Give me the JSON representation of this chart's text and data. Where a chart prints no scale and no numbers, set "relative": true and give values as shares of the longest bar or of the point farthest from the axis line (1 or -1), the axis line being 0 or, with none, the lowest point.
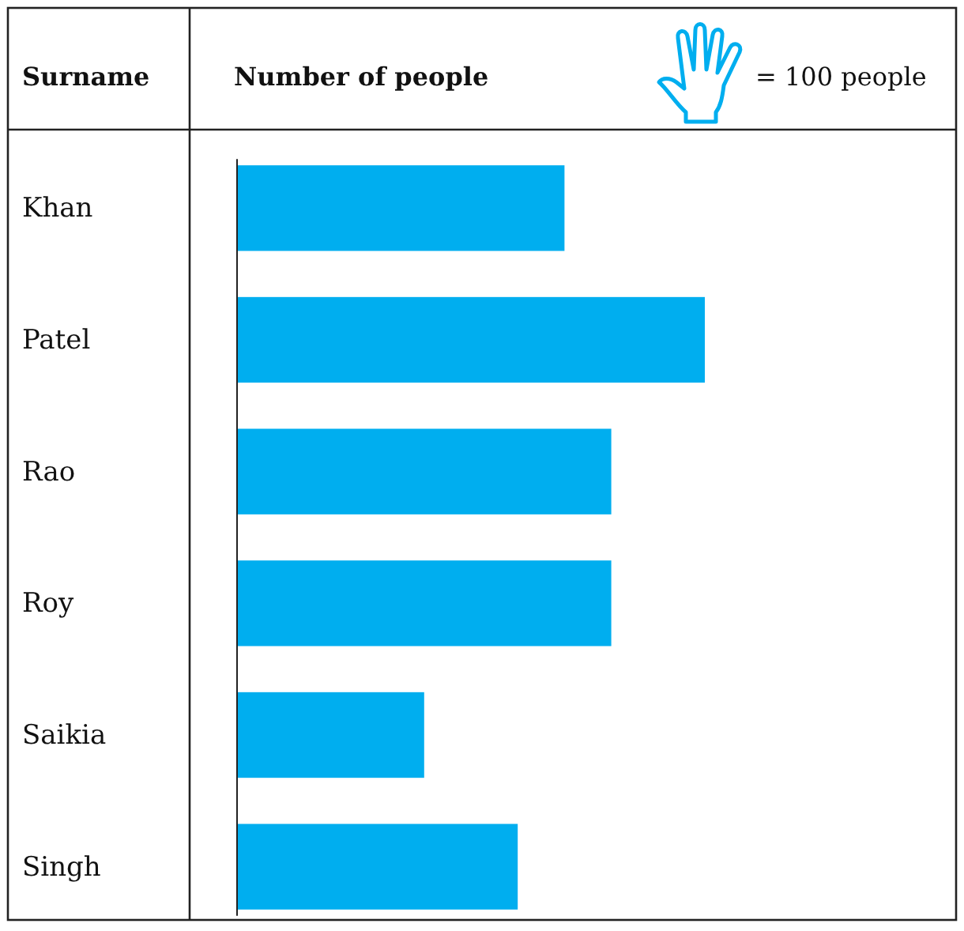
{
  "chart_data": {
    "type": "bar",
    "orientation": "horizontal",
    "relative": true,
    "xlabel": "Number of people",
    "ylabel": "Surname",
    "categories": [
      "Khan",
      "Patel",
      "Rao",
      "Roy",
      "Saikia",
      "Singh"
    ],
    "values": [
      0.7,
      1,
      0.8,
      0.8,
      0.4,
      0.6
    ],
    "color": "#00aeef",
    "annotations": [
      "= 100 people"
    ]
  }
}
